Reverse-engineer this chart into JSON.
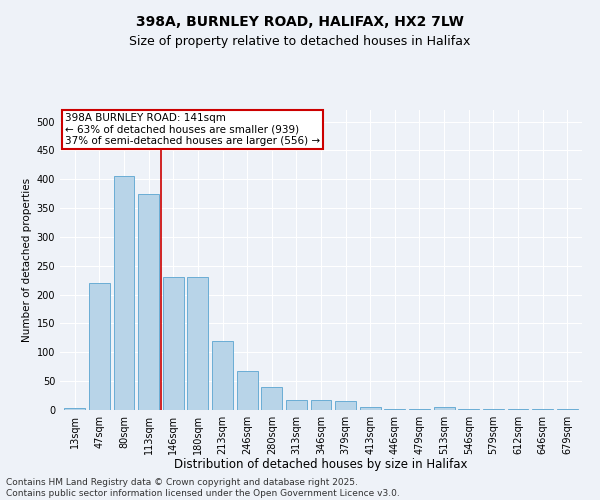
{
  "title": "398A, BURNLEY ROAD, HALIFAX, HX2 7LW",
  "subtitle": "Size of property relative to detached houses in Halifax",
  "xlabel": "Distribution of detached houses by size in Halifax",
  "ylabel": "Number of detached properties",
  "categories": [
    "13sqm",
    "47sqm",
    "80sqm",
    "113sqm",
    "146sqm",
    "180sqm",
    "213sqm",
    "246sqm",
    "280sqm",
    "313sqm",
    "346sqm",
    "379sqm",
    "413sqm",
    "446sqm",
    "479sqm",
    "513sqm",
    "546sqm",
    "579sqm",
    "612sqm",
    "646sqm",
    "679sqm"
  ],
  "values": [
    3,
    220,
    405,
    375,
    230,
    230,
    120,
    68,
    40,
    18,
    17,
    15,
    5,
    2,
    2,
    5,
    2,
    1,
    1,
    1,
    1
  ],
  "bar_color": "#b8d4e8",
  "bar_edge_color": "#6aadd5",
  "marker_label": "398A BURNLEY ROAD: 141sqm",
  "marker_color": "#cc0000",
  "annotation_line1": "← 63% of detached houses are smaller (939)",
  "annotation_line2": "37% of semi-detached houses are larger (556) →",
  "annotation_box_color": "#cc0000",
  "ylim": [
    0,
    520
  ],
  "yticks": [
    0,
    50,
    100,
    150,
    200,
    250,
    300,
    350,
    400,
    450,
    500
  ],
  "background_color": "#eef2f8",
  "grid_color": "#ffffff",
  "footer_line1": "Contains HM Land Registry data © Crown copyright and database right 2025.",
  "footer_line2": "Contains public sector information licensed under the Open Government Licence v3.0.",
  "title_fontsize": 10,
  "subtitle_fontsize": 9,
  "xlabel_fontsize": 8.5,
  "ylabel_fontsize": 7.5,
  "tick_fontsize": 7,
  "annot_fontsize": 7.5,
  "footer_fontsize": 6.5
}
